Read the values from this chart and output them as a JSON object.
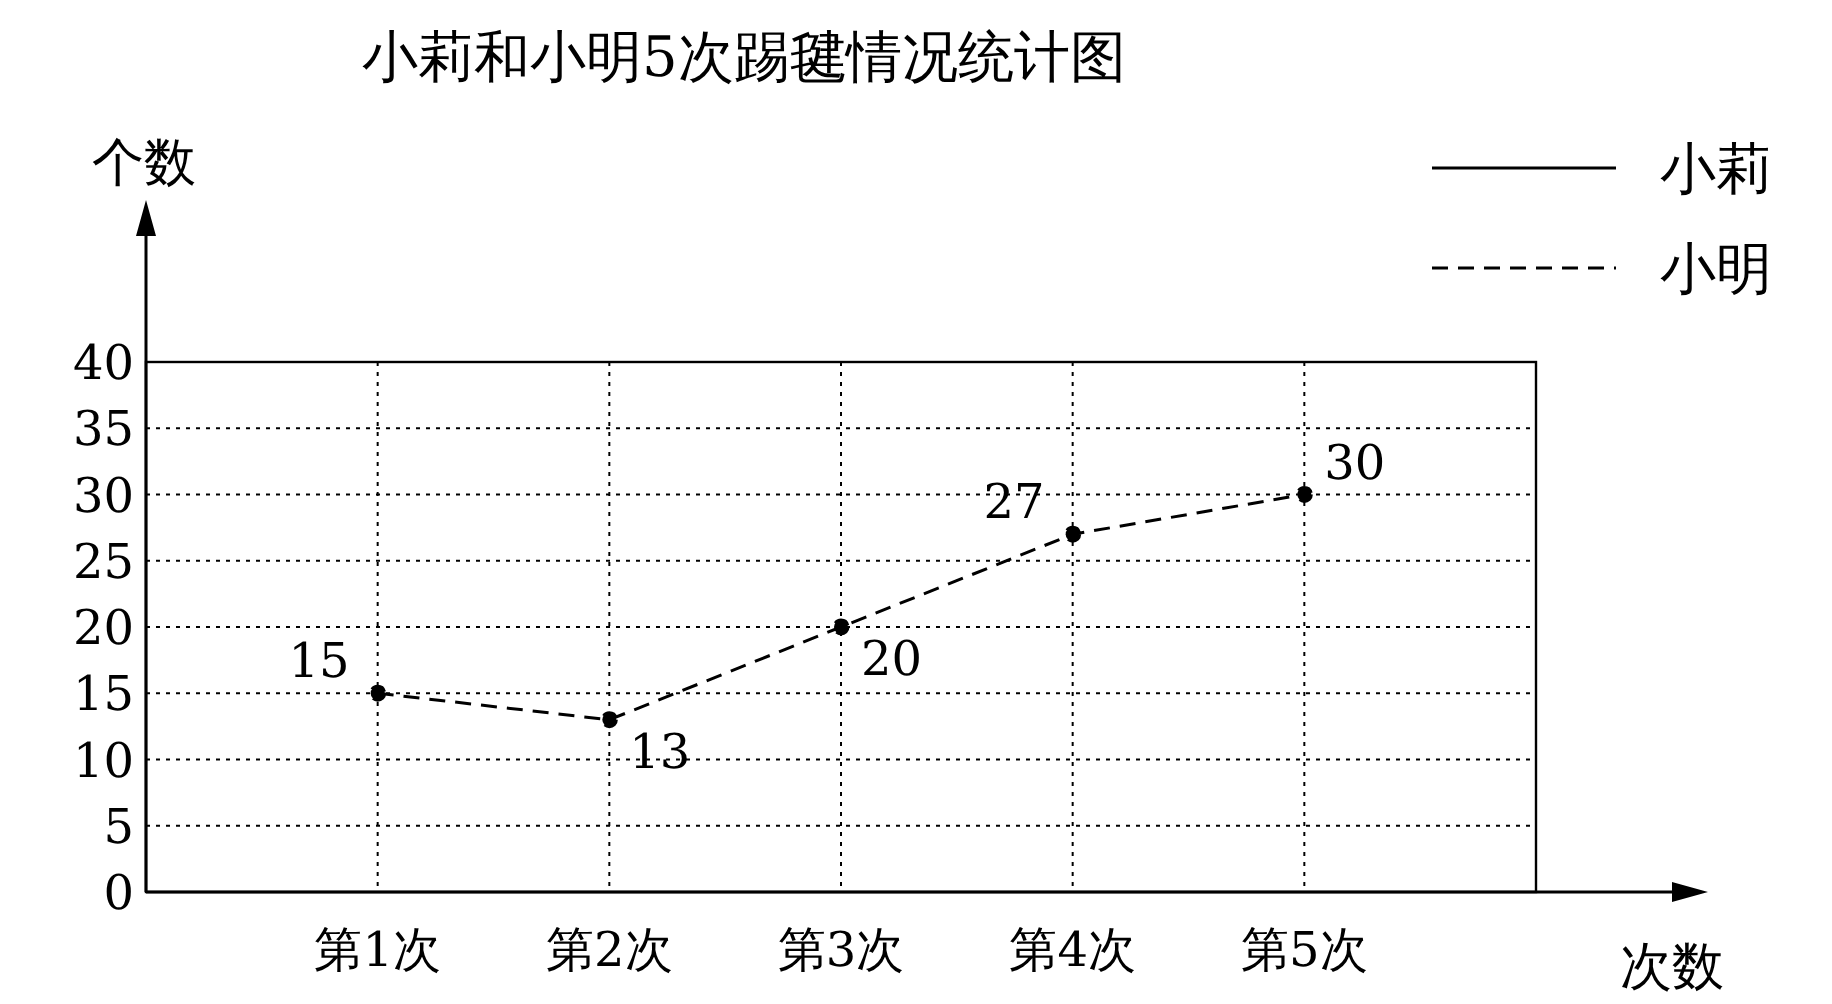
{
  "chart_data": {
    "type": "line",
    "title": "小莉和小明5次踢毽情况统计图",
    "xlabel": "次数",
    "ylabel": "个数",
    "categories": [
      "第1次",
      "第2次",
      "第3次",
      "第4次",
      "第5次"
    ],
    "series": [
      {
        "name": "小莉",
        "color": "#000000",
        "line_style": "solid",
        "values": [
          null,
          null,
          null,
          null,
          null
        ]
      },
      {
        "name": "小明",
        "color": "#000000",
        "line_style": "dashed",
        "values": [
          15,
          13,
          20,
          27,
          30
        ]
      }
    ],
    "ylim": [
      0,
      40
    ],
    "yticks": [
      0,
      5,
      10,
      15,
      20,
      25,
      30,
      35,
      40
    ],
    "grid": true,
    "legend": "top right",
    "marker": "circle",
    "data_labels": true
  }
}
